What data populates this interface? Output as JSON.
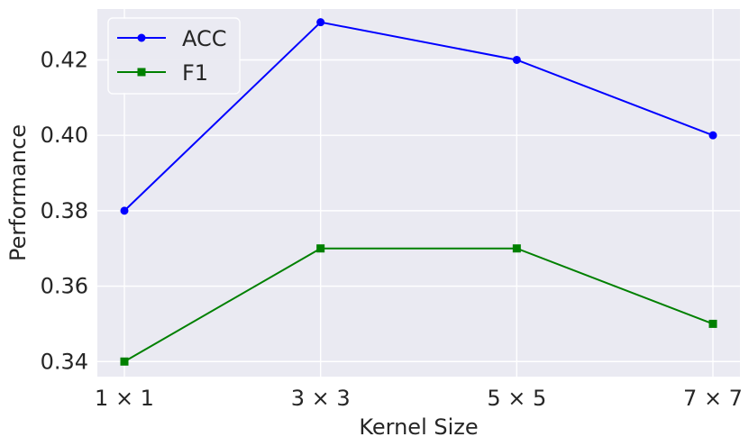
{
  "chart_data": {
    "type": "line",
    "categories": [
      "1 × 1",
      "3 × 3",
      "5 × 5",
      "7 × 7"
    ],
    "series": [
      {
        "name": "ACC",
        "values": [
          0.38,
          0.43,
          0.42,
          0.4
        ],
        "color": "#0000ff",
        "marker": "circle"
      },
      {
        "name": "F1",
        "values": [
          0.34,
          0.37,
          0.37,
          0.35
        ],
        "color": "#008000",
        "marker": "square"
      }
    ],
    "xlabel": "Kernel Size",
    "ylabel": "Performance",
    "ylim": [
      0.336,
      0.4335
    ],
    "yticks": [
      "0.34",
      "0.36",
      "0.38",
      "0.40",
      "0.42"
    ],
    "grid": true,
    "legend": "upper left",
    "background": "#eaeaf2",
    "gridcolor": "#ffffff"
  }
}
